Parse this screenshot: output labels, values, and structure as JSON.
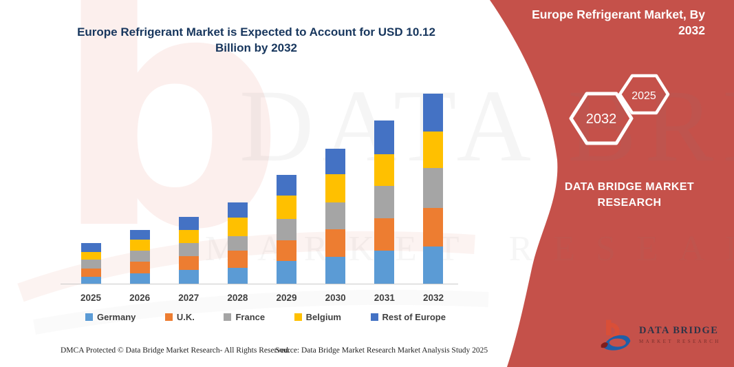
{
  "main_title": "Europe Refrigerant Market is Expected to Account for USD 10.12 Billion by 2032",
  "chart_data": {
    "type": "bar",
    "stacked": true,
    "title": "Europe Refrigerant Market is Expected to Account for USD 10.12 Billion by 2032",
    "unit": "USD Billion",
    "categories": [
      "2025",
      "2026",
      "2027",
      "2028",
      "2029",
      "2030",
      "2031",
      "2032"
    ],
    "series": [
      {
        "name": "Germany",
        "color": "#5B9BD5",
        "values": [
          0.37,
          0.55,
          0.73,
          0.84,
          1.2,
          1.44,
          1.75,
          1.97
        ]
      },
      {
        "name": "U.K.",
        "color": "#ED7D31",
        "values": [
          0.44,
          0.62,
          0.73,
          0.92,
          1.1,
          1.46,
          1.73,
          2.06
        ]
      },
      {
        "name": "France",
        "color": "#A5A5A5",
        "values": [
          0.48,
          0.59,
          0.7,
          0.76,
          1.14,
          1.43,
          1.72,
          2.12
        ]
      },
      {
        "name": "Belgium",
        "color": "#FFC000",
        "values": [
          0.4,
          0.58,
          0.7,
          0.99,
          1.27,
          1.5,
          1.7,
          1.95
        ]
      },
      {
        "name": "Rest of Europe",
        "color": "#4472C4",
        "values": [
          0.47,
          0.51,
          0.7,
          0.82,
          1.07,
          1.37,
          1.78,
          2.02
        ]
      }
    ],
    "totals": [
      2.16,
      2.85,
      3.56,
      4.33,
      5.78,
      7.2,
      8.68,
      10.12
    ],
    "ylim": [
      0,
      10.45
    ],
    "grid": false,
    "legend_position": "bottom",
    "xlabel": "",
    "ylabel": ""
  },
  "side_panel": {
    "bg_color": "#C5514A",
    "title": "Europe Refrigerant Market, By 2032",
    "hexagons": [
      {
        "label": "2032"
      },
      {
        "label": "2025"
      }
    ],
    "brand": "DATA BRIDGE MARKET RESEARCH"
  },
  "logo": {
    "brand": "DATA BRIDGE",
    "tagline": "MARKET RESEARCH"
  },
  "watermark": {
    "big_letter": "b",
    "line1": "DATA BRIDGE",
    "line2": "MARKET RESEARCH"
  },
  "footer": {
    "left": "DMCA Protected © Data Bridge Market Research-  All Rights Reserved.",
    "source": "Source: Data Bridge Market Research  Market Analysis Study 2025"
  }
}
